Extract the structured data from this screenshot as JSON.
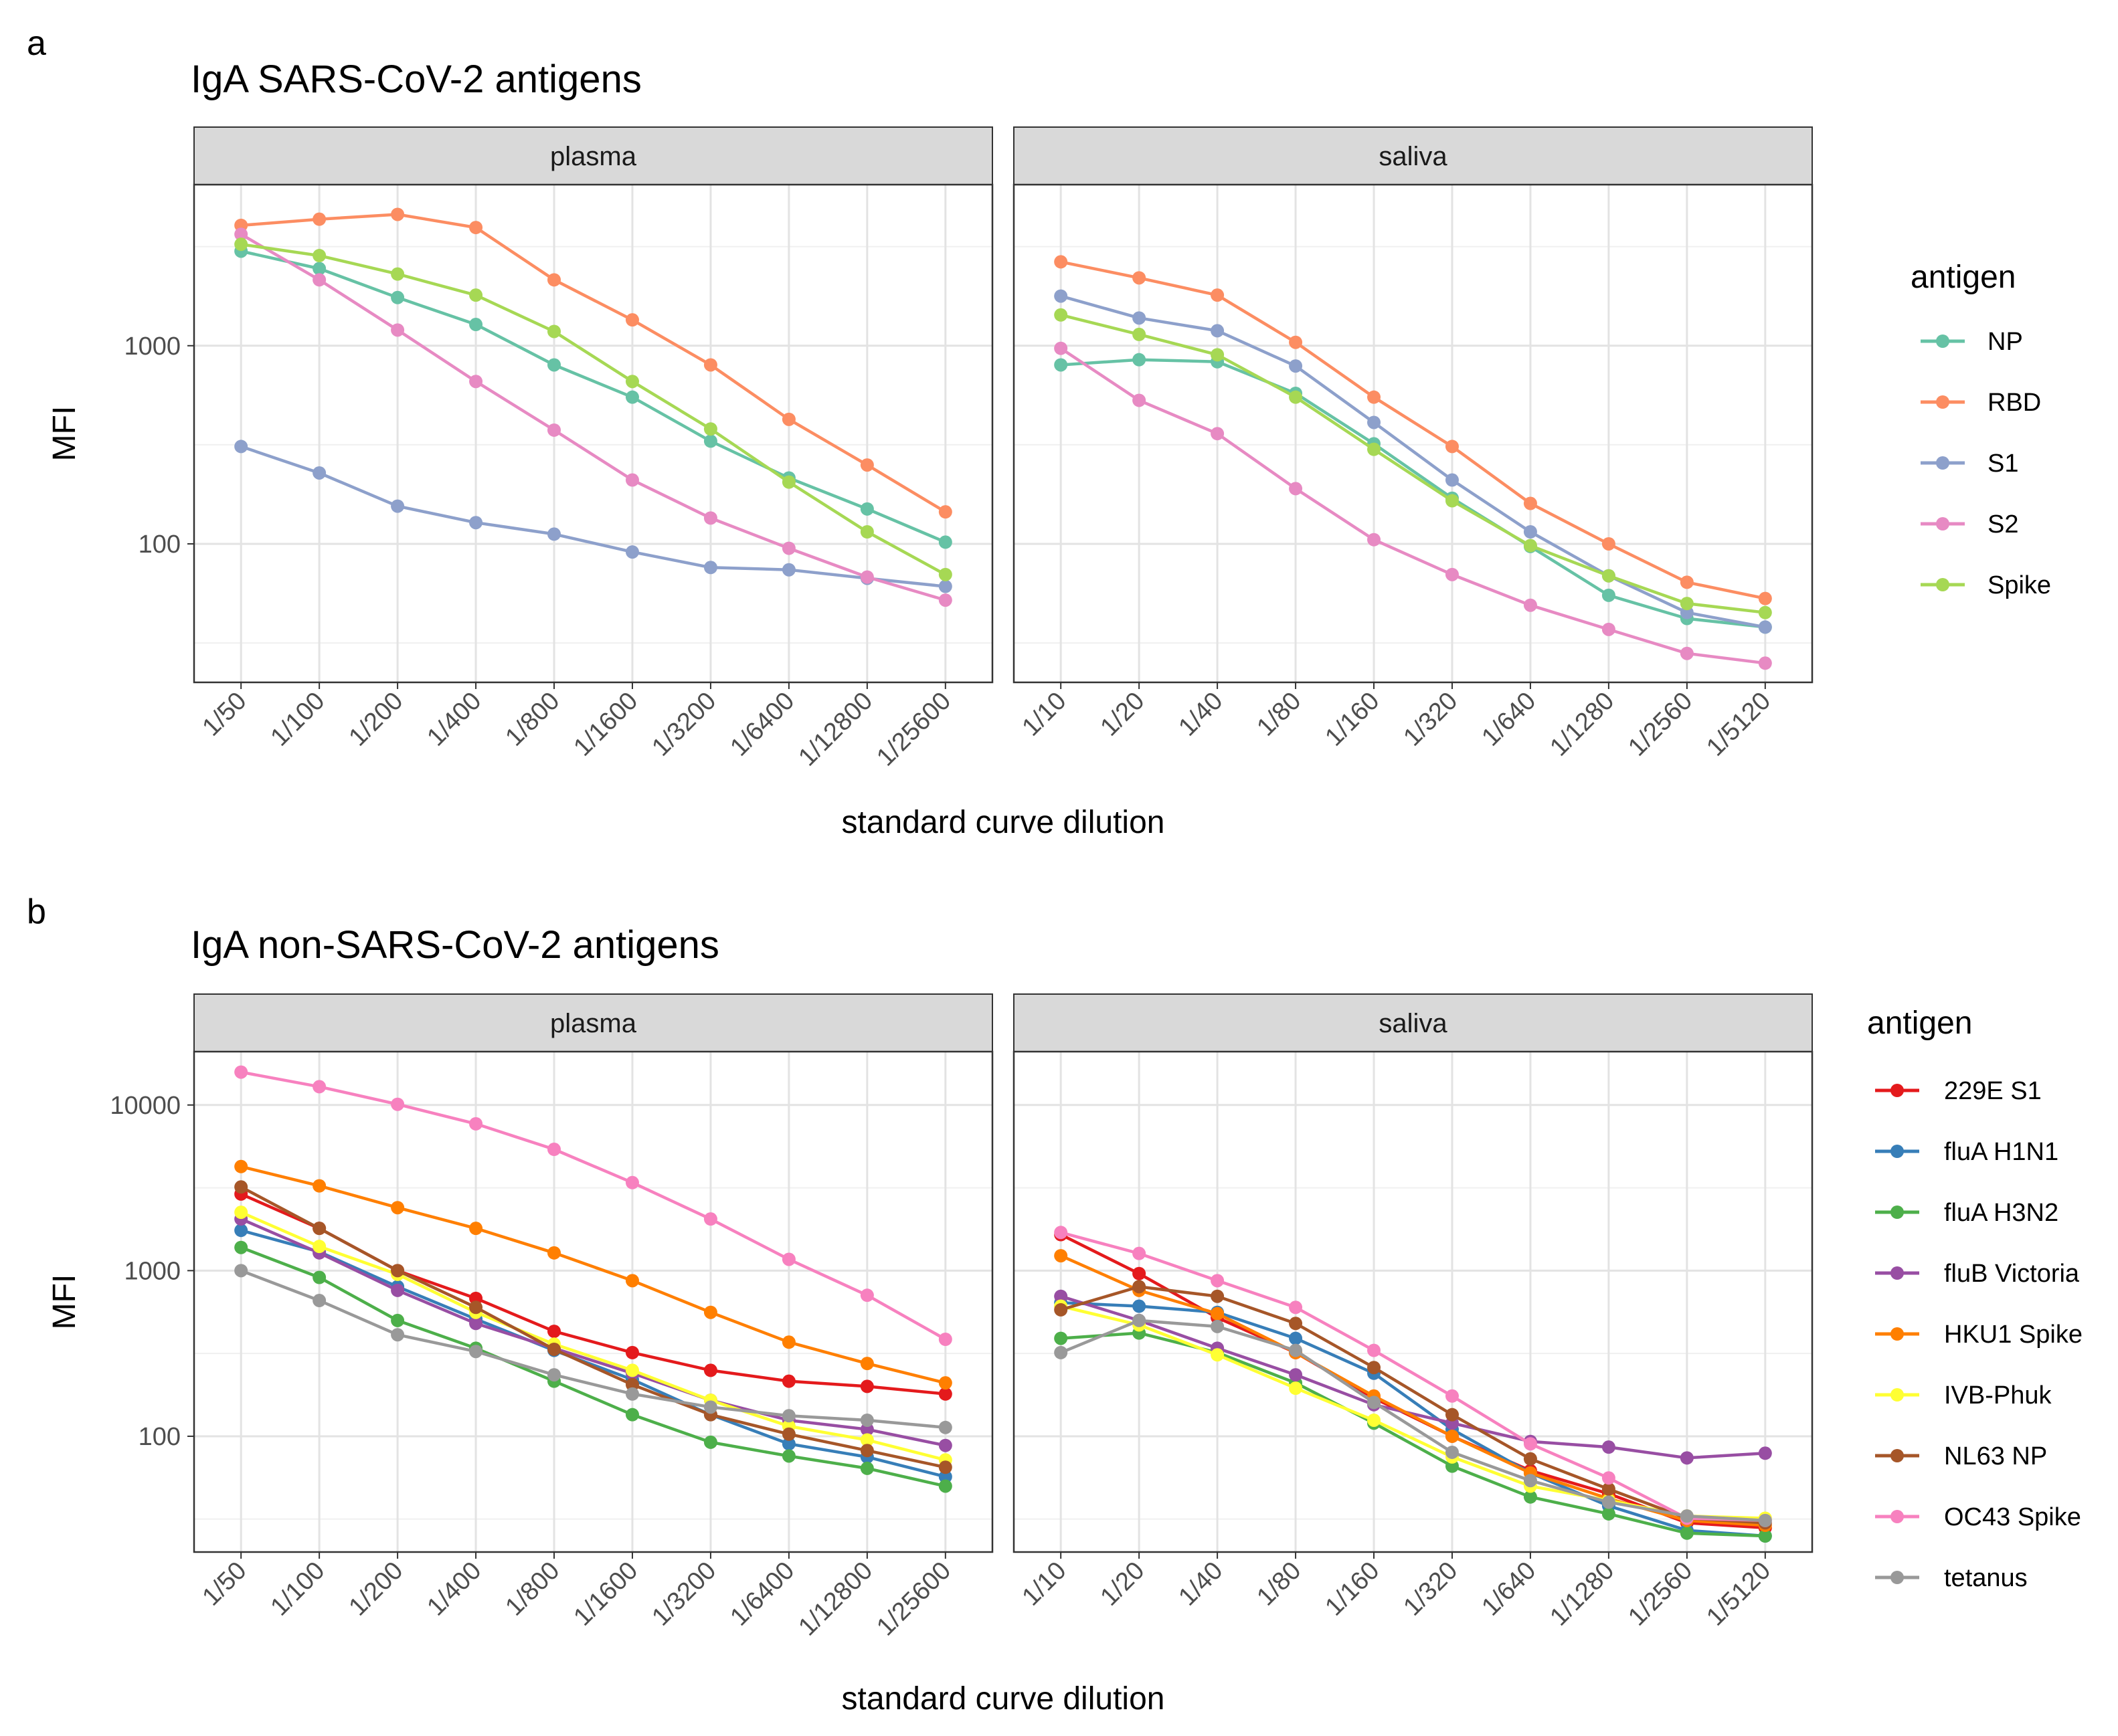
{
  "figure": {
    "panel_a_letter": "a",
    "panel_b_letter": "b"
  },
  "chart_data": [
    {
      "type": "line",
      "title": "IgA SARS-CoV-2 antigens",
      "xlabel": "standard curve dilution",
      "ylabel": "MFI",
      "yscale": "log10",
      "ylim": [
        20,
        6500
      ],
      "yticks": [
        100,
        1000
      ],
      "ytick_labels": [
        "100",
        "1000"
      ],
      "legend_title": "antigen",
      "legend_position": "right",
      "facets": [
        {
          "label": "plasma",
          "categories": [
            "1/50",
            "1/100",
            "1/200",
            "1/400",
            "1/800",
            "1/1600",
            "1/3200",
            "1/6400",
            "1/12800",
            "1/25600"
          ],
          "series": [
            {
              "name": "NP",
              "values": [
                3000,
                2450,
                1750,
                1280,
                800,
                550,
                330,
                215,
                150,
                102
              ]
            },
            {
              "name": "RBD",
              "values": [
                4050,
                4350,
                4600,
                3950,
                2150,
                1350,
                800,
                425,
                250,
                145
              ]
            },
            {
              "name": "S1",
              "values": [
                310,
                228,
                155,
                128,
                112,
                91,
                76,
                74,
                67,
                61
              ]
            },
            {
              "name": "S2",
              "values": [
                3650,
                2150,
                1200,
                660,
                375,
                210,
                135,
                95,
                68,
                52
              ]
            },
            {
              "name": "Spike",
              "values": [
                3250,
                2850,
                2300,
                1800,
                1180,
                660,
                380,
                205,
                115,
                70
              ]
            }
          ]
        },
        {
          "label": "saliva",
          "categories": [
            "1/10",
            "1/20",
            "1/40",
            "1/80",
            "1/160",
            "1/320",
            "1/640",
            "1/1280",
            "1/2560",
            "1/5120"
          ],
          "series": [
            {
              "name": "NP",
              "values": [
                800,
                850,
                830,
                575,
                320,
                170,
                97,
                55,
                42,
                38
              ]
            },
            {
              "name": "RBD",
              "values": [
                2650,
                2200,
                1800,
                1040,
                550,
                310,
                160,
                100,
                64,
                53
              ]
            },
            {
              "name": "S1",
              "values": [
                1780,
                1380,
                1190,
                790,
                410,
                210,
                115,
                69,
                45,
                38
              ]
            },
            {
              "name": "S2",
              "values": [
                970,
                530,
                360,
                190,
                105,
                70,
                49,
                37,
                28,
                25
              ]
            },
            {
              "name": "Spike",
              "values": [
                1430,
                1140,
                900,
                550,
                300,
                165,
                98,
                69,
                50,
                45
              ]
            }
          ]
        }
      ],
      "colors": {
        "NP": "#66C2A5",
        "RBD": "#FC8D62",
        "S1": "#8DA0CB",
        "S2": "#E78AC3",
        "Spike": "#A6D854"
      }
    },
    {
      "type": "line",
      "title": "IgA non-SARS-CoV-2 antigens",
      "xlabel": "standard curve dilution",
      "ylabel": "MFI",
      "yscale": "log10",
      "ylim": [
        20,
        21000
      ],
      "yticks": [
        100,
        1000,
        10000
      ],
      "ytick_labels": [
        "100",
        "1000",
        "10000"
      ],
      "legend_title": "antigen",
      "legend_position": "right",
      "facets": [
        {
          "label": "plasma",
          "categories": [
            "1/50",
            "1/100",
            "1/200",
            "1/400",
            "1/800",
            "1/1600",
            "1/3200",
            "1/6400",
            "1/12800",
            "1/25600"
          ],
          "series": [
            {
              "name": "229E S1",
              "values": [
                2900,
                1800,
                1000,
                680,
                430,
                320,
                250,
                215,
                200,
                180
              ]
            },
            {
              "name": "fluA H1N1",
              "values": [
                1750,
                1300,
                800,
                510,
                330,
                220,
                135,
                90,
                75,
                57
              ]
            },
            {
              "name": "fluA H3N2",
              "values": [
                1380,
                910,
                500,
                340,
                215,
                135,
                92,
                76,
                64,
                50
              ]
            },
            {
              "name": "fluB Victoria",
              "values": [
                2050,
                1280,
                760,
                480,
                340,
                240,
                165,
                125,
                110,
                88
              ]
            },
            {
              "name": "HKU1 Spike",
              "values": [
                4250,
                3250,
                2400,
                1800,
                1280,
                870,
                560,
                370,
                275,
                210
              ]
            },
            {
              "name": "IVB-Phuk",
              "values": [
                2250,
                1400,
                950,
                560,
                360,
                250,
                165,
                115,
                95,
                72
              ]
            },
            {
              "name": "NL63 NP",
              "values": [
                3200,
                1800,
                1000,
                600,
                335,
                205,
                135,
                103,
                82,
                65
              ]
            },
            {
              "name": "OC43 Spike",
              "values": [
                15800,
                12900,
                10100,
                7700,
                5400,
                3400,
                2050,
                1170,
                710,
                385
              ]
            },
            {
              "name": "tetanus",
              "values": [
                1000,
                660,
                410,
                325,
                235,
                180,
                150,
                133,
                125,
                113
              ]
            }
          ]
        },
        {
          "label": "saliva",
          "categories": [
            "1/10",
            "1/20",
            "1/40",
            "1/80",
            "1/160",
            "1/320",
            "1/640",
            "1/1280",
            "1/2560",
            "1/5120"
          ],
          "series": [
            {
              "name": "229E S1",
              "values": [
                1650,
                960,
                520,
                320,
                170,
                100,
                62,
                45,
                30,
                28
              ]
            },
            {
              "name": "fluA H1N1",
              "values": [
                640,
                610,
                560,
                390,
                240,
                110,
                60,
                38,
                27,
                25
              ]
            },
            {
              "name": "fluA H3N2",
              "values": [
                390,
                420,
                320,
                210,
                120,
                66,
                43,
                34,
                26,
                25
              ]
            },
            {
              "name": "fluB Victoria",
              "values": [
                700,
                500,
                340,
                235,
                155,
                120,
                93,
                86,
                74,
                79
              ]
            },
            {
              "name": "HKU1 Spike",
              "values": [
                1230,
                760,
                550,
                320,
                175,
                100,
                60,
                42,
                31,
                29
              ]
            },
            {
              "name": "IVB-Phuk",
              "values": [
                610,
                470,
                310,
                195,
                125,
                75,
                50,
                41,
                33,
                32
              ]
            },
            {
              "name": "NL63 NP",
              "values": [
                580,
                800,
                700,
                480,
                260,
                135,
                73,
                48,
                32,
                30
              ]
            },
            {
              "name": "OC43 Spike",
              "values": [
                1700,
                1270,
                870,
                600,
                330,
                175,
                90,
                56,
                32,
                31
              ]
            },
            {
              "name": "tetanus",
              "values": [
                320,
                500,
                460,
                330,
                160,
                80,
                54,
                40,
                33,
                31
              ]
            }
          ]
        }
      ],
      "colors": {
        "229E S1": "#E41A1C",
        "fluA H1N1": "#377EB8",
        "fluA H3N2": "#4DAF4A",
        "fluB Victoria": "#984EA3",
        "HKU1 Spike": "#FF7F00",
        "IVB-Phuk": "#FFFF33",
        "NL63 NP": "#A65628",
        "OC43 Spike": "#F781BF",
        "tetanus": "#999999"
      }
    }
  ]
}
